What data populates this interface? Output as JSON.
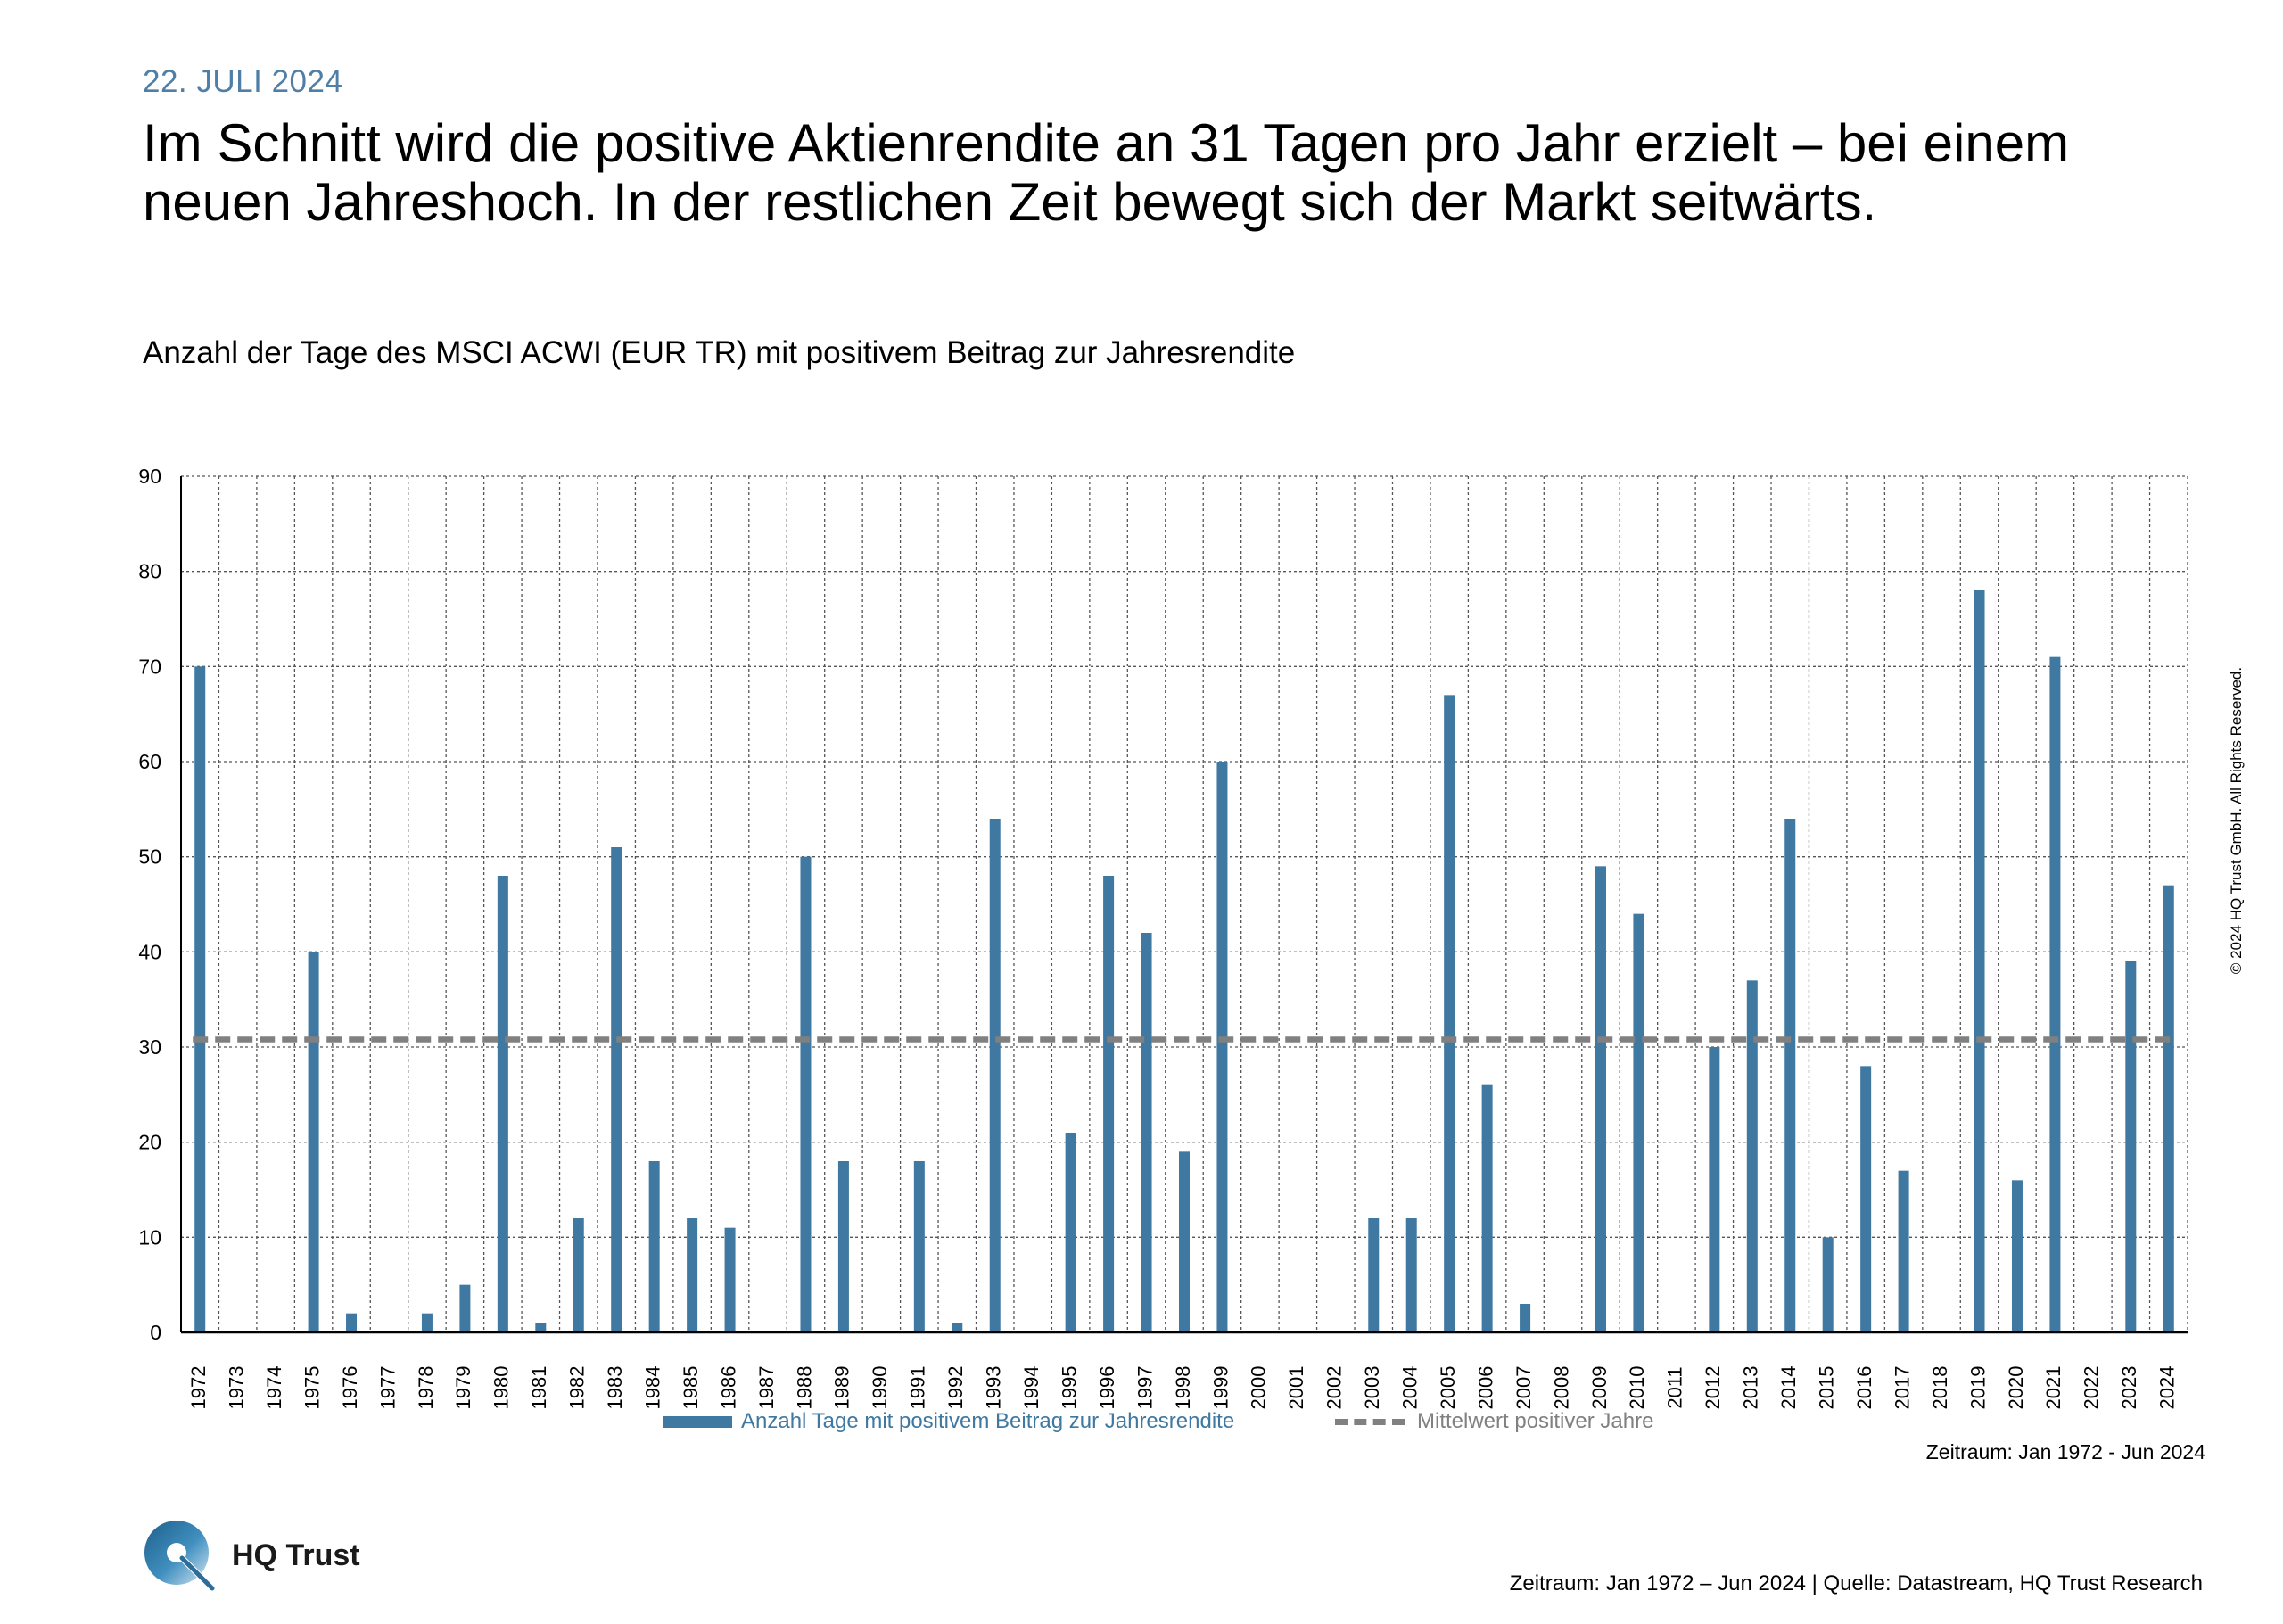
{
  "header": {
    "date": "22. JULI 2024",
    "headline": "Im Schnitt wird die positive Aktienrendite an 31 Tagen pro Jahr erzielt – bei einem neuen Jahreshoch. In der restlichen Zeit bewegt sich der Markt seitwärts."
  },
  "chart_data": {
    "type": "bar",
    "title": "Anzahl der Tage des MSCI ACWI (EUR TR) mit positivem Beitrag zur Jahresrendite",
    "categories": [
      "1972",
      "1973",
      "1974",
      "1975",
      "1976",
      "1977",
      "1978",
      "1979",
      "1980",
      "1981",
      "1982",
      "1983",
      "1984",
      "1985",
      "1986",
      "1987",
      "1988",
      "1989",
      "1990",
      "1991",
      "1992",
      "1993",
      "1994",
      "1995",
      "1996",
      "1997",
      "1998",
      "1999",
      "2000",
      "2001",
      "2002",
      "2003",
      "2004",
      "2005",
      "2006",
      "2007",
      "2008",
      "2009",
      "2010",
      "2011",
      "2012",
      "2013",
      "2014",
      "2015",
      "2016",
      "2017",
      "2018",
      "2019",
      "2020",
      "2021",
      "2022",
      "2023",
      "2024"
    ],
    "series": [
      {
        "name": "Anzahl Tage mit positivem Beitrag zur Jahresrendite",
        "type": "bar",
        "color": "#3f78a0",
        "values": [
          70,
          0,
          0,
          40,
          2,
          0,
          2,
          5,
          48,
          1,
          12,
          51,
          18,
          12,
          11,
          0,
          50,
          18,
          0,
          18,
          1,
          54,
          0,
          21,
          48,
          42,
          19,
          60,
          0,
          0,
          0,
          12,
          12,
          67,
          26,
          3,
          0,
          49,
          44,
          0,
          30,
          37,
          54,
          10,
          28,
          17,
          0,
          78,
          16,
          71,
          0,
          39,
          47
        ]
      },
      {
        "name": "Mittelwert positiver Jahre",
        "type": "line",
        "style": "dashed",
        "color": "#808080",
        "value": 30.8
      }
    ],
    "ylim": [
      0,
      90
    ],
    "yticks": [
      0,
      10,
      20,
      30,
      40,
      50,
      60,
      70,
      80,
      90
    ],
    "xlabel": "",
    "ylabel": "",
    "grid": true,
    "legend_position": "bottom"
  },
  "legend": {
    "bar_label": "Anzahl Tage mit positivem Beitrag zur Jahresrendite",
    "mean_label": "Mittelwert positiver Jahre"
  },
  "chart_note": "Zeitraum: Jan 1972 - Jun 2024",
  "copyright": "© 2024 HQ Trust GmbH. All Rights Reserved.",
  "footer": {
    "brand": "HQ Trust",
    "source": "Zeitraum: Jan 1972 – Jun 2024 | Quelle: Datastream, HQ Trust Research"
  }
}
